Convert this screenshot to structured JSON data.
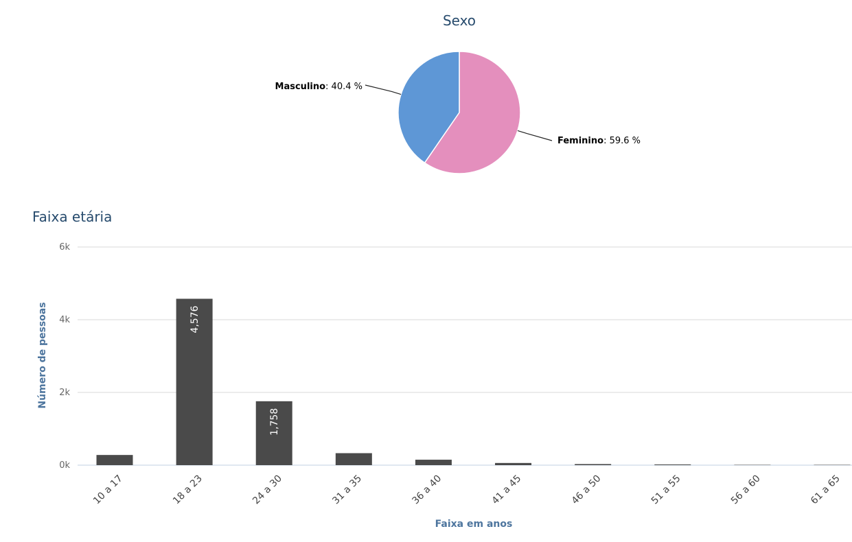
{
  "chart_data": [
    {
      "type": "pie",
      "title": "Sexo",
      "slices": [
        {
          "name": "Feminino",
          "value": 59.6,
          "label": "59.6 %",
          "color": "#e48fbd"
        },
        {
          "name": "Masculino",
          "value": 40.4,
          "label": "40.4 %",
          "color": "#5e97d6"
        }
      ]
    },
    {
      "type": "bar",
      "title": "Faixa etária",
      "xlabel": "Faixa em anos",
      "ylabel": "Número de pessoas",
      "categories": [
        "10 a 17",
        "18 a 23",
        "24 a 30",
        "31 a 35",
        "36 a 40",
        "41 a 45",
        "46 a 50",
        "51 a 55",
        "56 a 60",
        "61 a 65"
      ],
      "values": [
        280,
        4576,
        1758,
        330,
        150,
        60,
        30,
        20,
        5,
        2
      ],
      "data_labels": [
        "",
        "4,576",
        "1,758",
        "",
        "",
        "",
        "",
        "",
        "",
        ""
      ],
      "ylim": [
        0,
        6000
      ],
      "yticks": [
        0,
        2000,
        4000,
        6000
      ],
      "ytick_labels": [
        "0k",
        "2k",
        "4k",
        "6k"
      ],
      "grid": true,
      "bar_color": "#4a4a4a"
    }
  ]
}
